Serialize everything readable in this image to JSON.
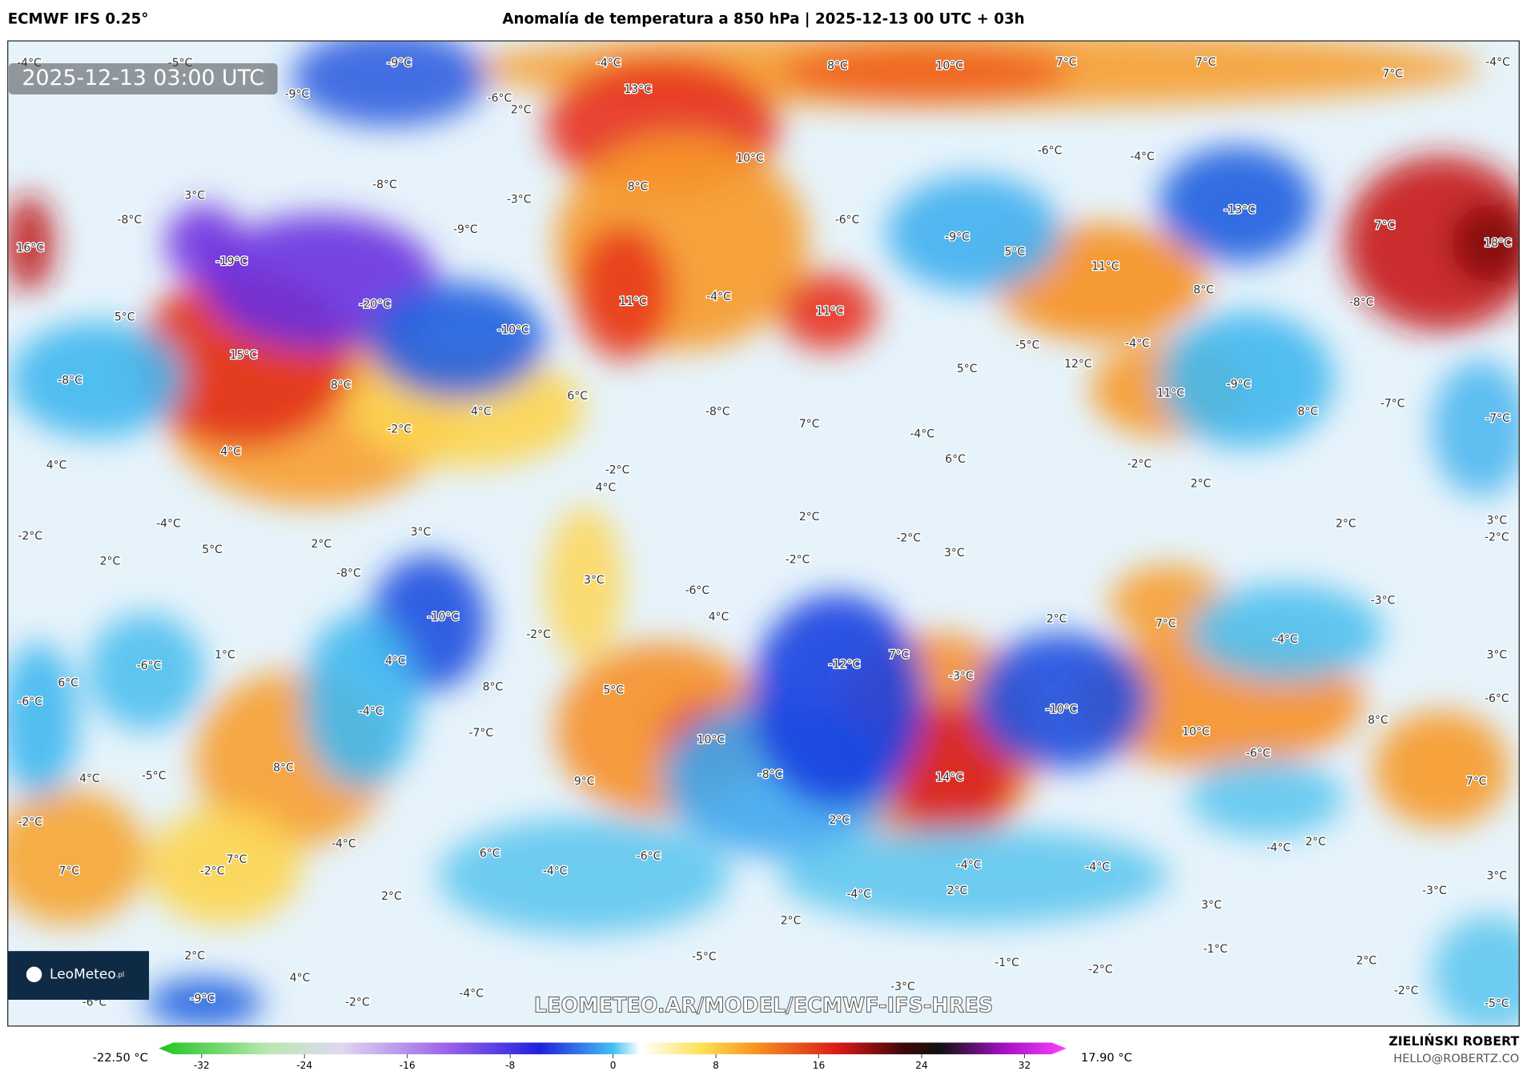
{
  "header": {
    "model": "ECMWF IFS 0.25°",
    "title": "Anomalía de temperatura a 850 hPa | 2025-12-13 00 UTC + 03h"
  },
  "map": {
    "timestamp": "2025-12-13 03:00 UTC",
    "logo": "LeoMeteo",
    "logo_suffix": ".pl",
    "watermark": "LEOMETEO.AR/MODEL/ECMWF-IFS-HRES",
    "labels": [
      "-4°C",
      "-5°C",
      "-9°C",
      "-4°C",
      "8°C",
      "10°C",
      "7°C",
      "7°C",
      "7°C",
      "-4°C",
      "-9°C",
      "-6°C",
      "2°C",
      "13°C",
      "10°C",
      "-6°C",
      "-4°C",
      "3°C",
      "-8°C",
      "8°C",
      "-3°C",
      "-8°C",
      "-9°C",
      "-6°C",
      "-13°C",
      "7°C",
      "18°C",
      "16°C",
      "-19°C",
      "-9°C",
      "5°C",
      "11°C",
      "8°C",
      "-8°C",
      "5°C",
      "-20°C",
      "11°C",
      "-4°C",
      "11°C",
      "-10°C",
      "15°C",
      "-8°C",
      "8°C",
      "-5°C",
      "-4°C",
      "12°C",
      "5°C",
      "-9°C",
      "11°C",
      "-7°C",
      "8°C",
      "-7°C",
      "6°C",
      "4°C",
      "-8°C",
      "7°C",
      "-2°C",
      "-4°C",
      "4°C",
      "6°C",
      "4°C",
      "-2°C",
      "-2°C",
      "4°C",
      "2°C",
      "2°C",
      "3°C",
      "-2°C",
      "2°C",
      "-4°C",
      "-2°C",
      "3°C",
      "2°C",
      "-2°C",
      "5°C",
      "3°C",
      "-2°C",
      "2°C",
      "-8°C",
      "3°C",
      "-6°C",
      "-3°C",
      "-10°C",
      "4°C",
      "2°C",
      "7°C",
      "-2°C",
      "-4°C",
      "1°C",
      "3°C",
      "7°C",
      "4°C",
      "-6°C",
      "-12°C",
      "-3°C",
      "6°C",
      "8°C",
      "5°C",
      "-6°C",
      "-6°C",
      "-10°C",
      "-4°C",
      "-7°C",
      "10°C",
      "10°C",
      "8°C",
      "-6°C",
      "8°C",
      "4°C",
      "-5°C",
      "9°C",
      "-8°C",
      "14°C",
      "7°C",
      "-2°C",
      "2°C",
      "-4°C",
      "2°C",
      "-4°C",
      "6°C",
      "-6°C",
      "7°C",
      "-2°C",
      "7°C",
      "-4°C",
      "-4°C",
      "-4°C",
      "3°C",
      "-3°C",
      "2°C",
      "-4°C",
      "2°C",
      "3°C",
      "2°C",
      "2°C",
      "-1°C",
      "-5°C",
      "-1°C",
      "-2°C",
      "2°C",
      "4°C",
      "-3°C",
      "-4°C",
      "-9°C",
      "-2°C",
      "-6°C",
      "-2°C",
      "-5°C"
    ]
  },
  "colorbar": {
    "min_label": "-22.50 °C",
    "max_label": "17.90 °C",
    "ticks": [
      -32,
      -24,
      -16,
      -8,
      0,
      8,
      16,
      24,
      32
    ]
  },
  "footer": {
    "author": "ZIELIŃSKI ROBERT",
    "email": "HELLO@ROBERTZ.CO"
  }
}
